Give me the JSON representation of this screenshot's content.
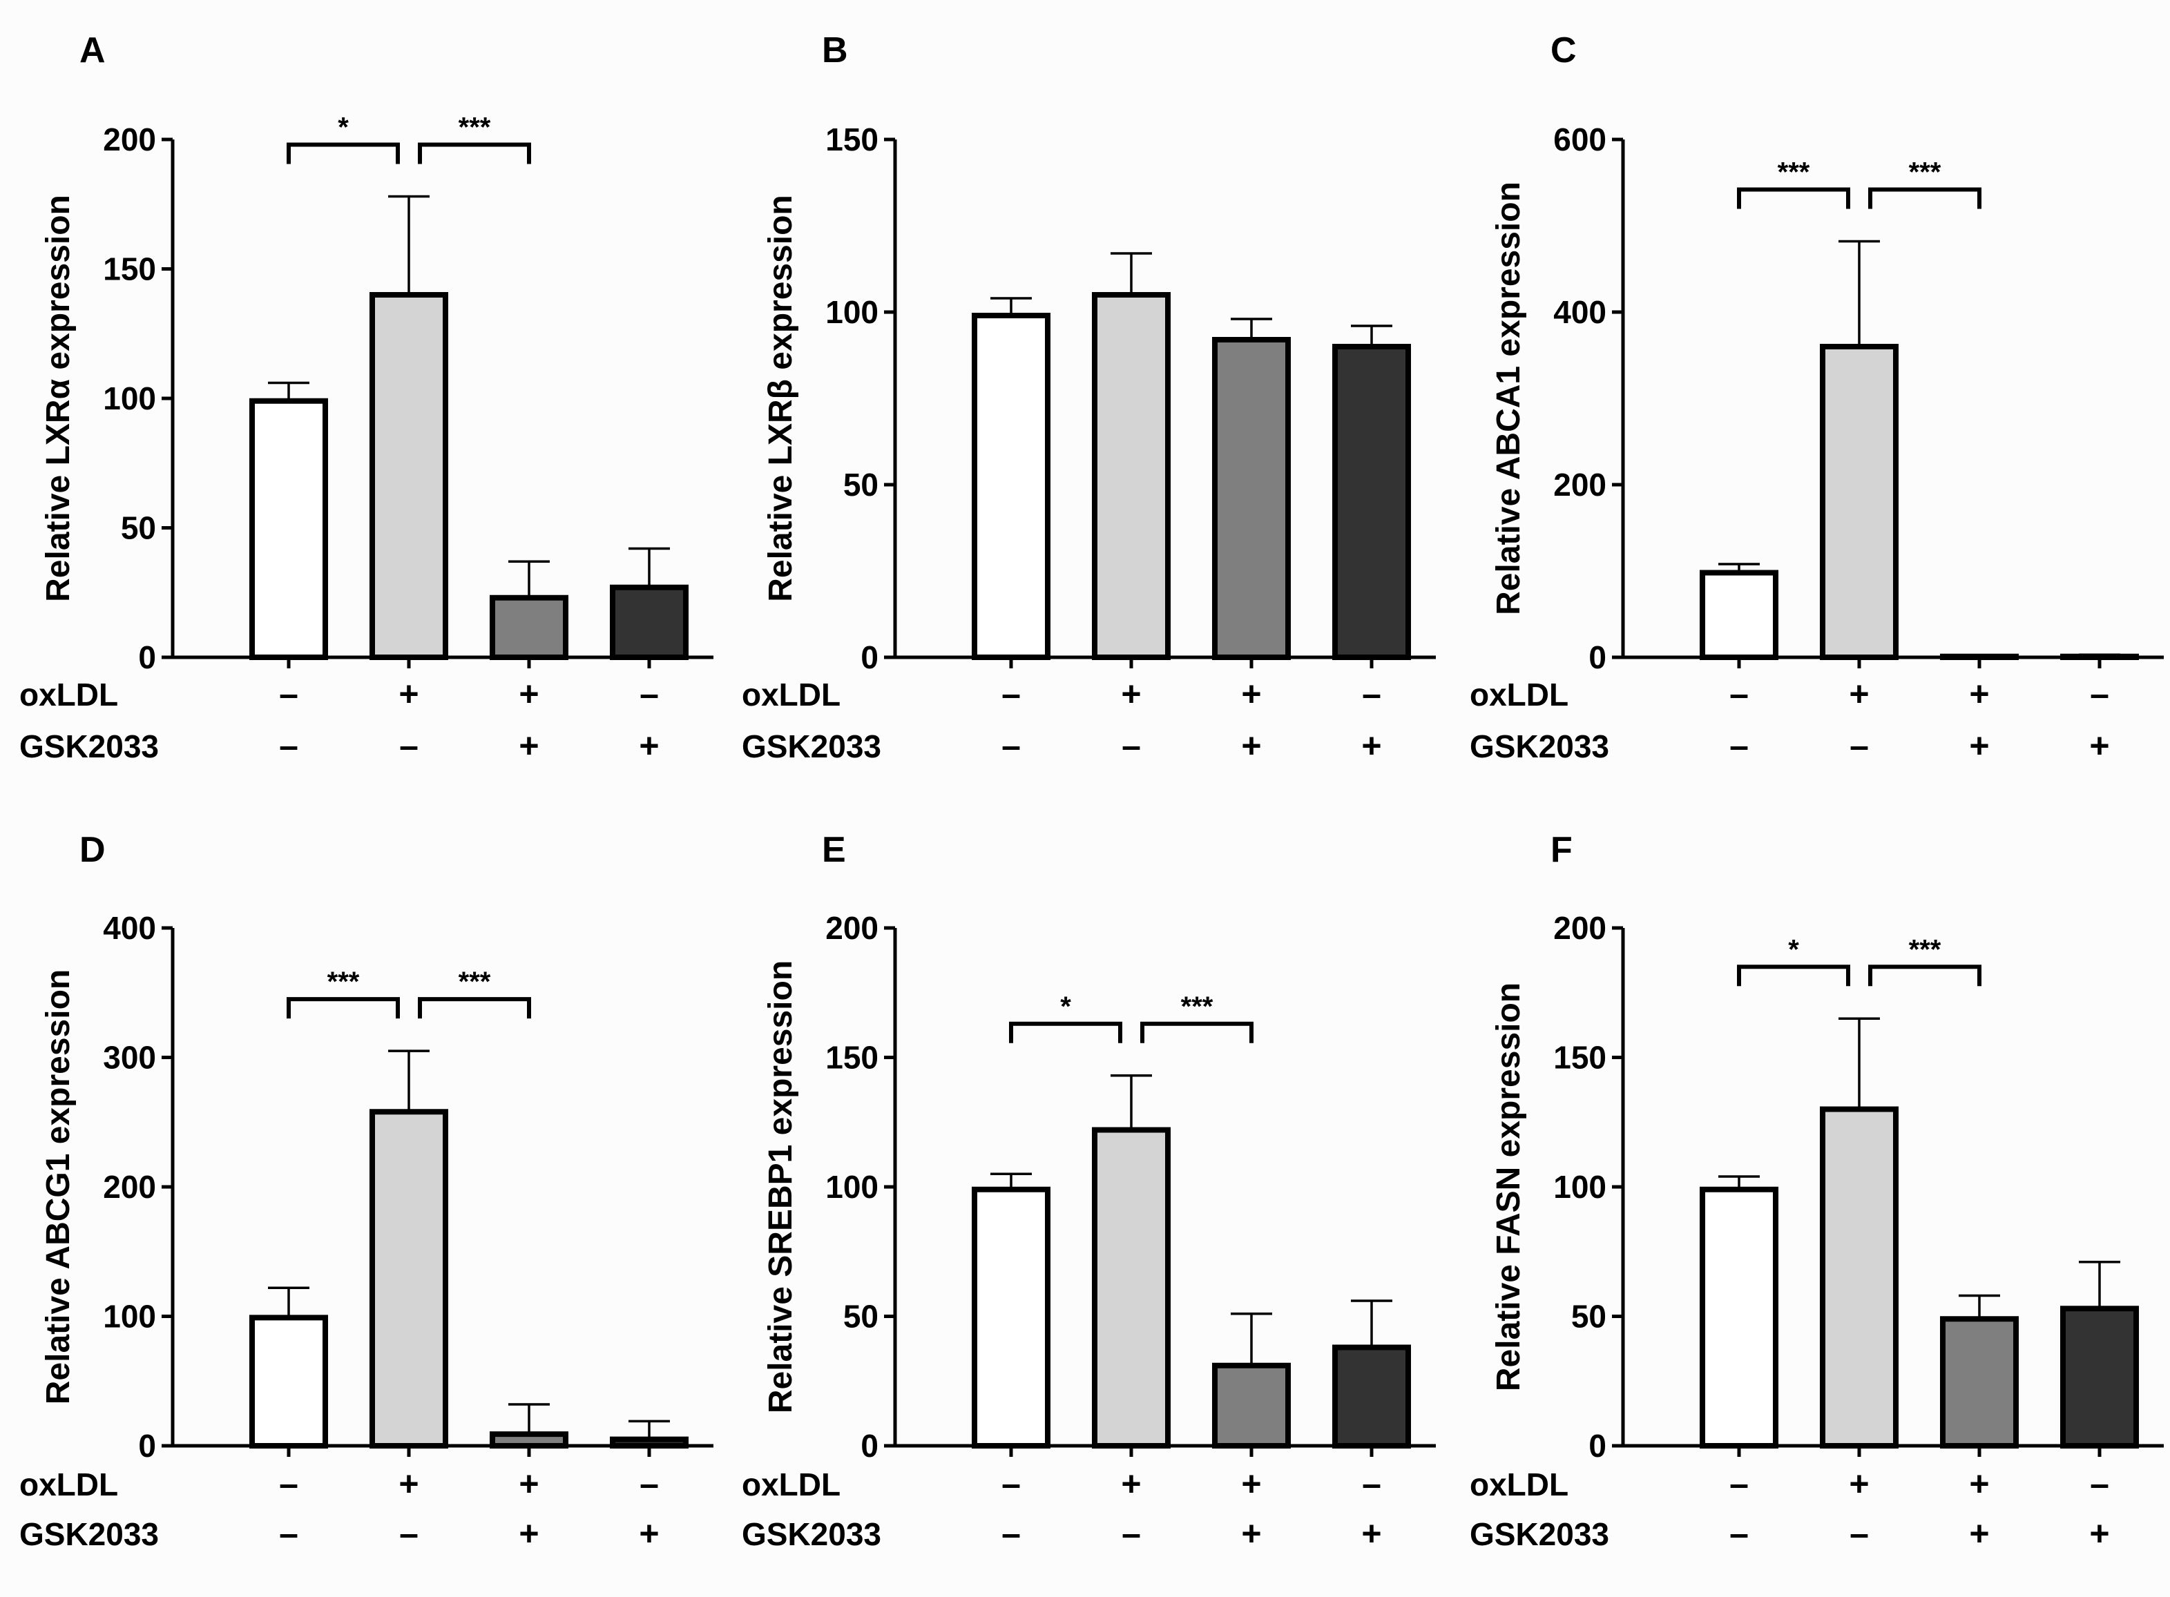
{
  "figure": {
    "row_labels": [
      "oxLDL",
      "GSK2033"
    ],
    "conditions": [
      {
        "oxLDL": "–",
        "GSK2033": "–"
      },
      {
        "oxLDL": "+",
        "GSK2033": "–"
      },
      {
        "oxLDL": "+",
        "GSK2033": "+"
      },
      {
        "oxLDL": "–",
        "GSK2033": "+"
      }
    ]
  },
  "colors": {
    "bars": [
      "#ffffff",
      "#d4d4d4",
      "#7f7f7f",
      "#333333"
    ],
    "axis": "#000000",
    "background": "#fcfcfc"
  },
  "chart_data": [
    {
      "panel": "A",
      "type": "bar",
      "ylabel": "Relative LXRα expression",
      "categories": [
        "– / –",
        "+ / –",
        "+ / +",
        "– / +"
      ],
      "values": [
        99,
        140,
        23,
        27
      ],
      "errors": [
        7,
        38,
        14,
        15
      ],
      "ylim": [
        0,
        200
      ],
      "yticks": [
        0,
        50,
        100,
        150,
        200
      ],
      "significance": [
        {
          "from": 0,
          "to": 1,
          "label": "*"
        },
        {
          "from": 1,
          "to": 2,
          "label": "***"
        }
      ]
    },
    {
      "panel": "B",
      "type": "bar",
      "ylabel": "Relative LXRβ expression",
      "categories": [
        "– / –",
        "+ / –",
        "+ / +",
        "– / +"
      ],
      "values": [
        99,
        105,
        92,
        90
      ],
      "errors": [
        5,
        12,
        6,
        6
      ],
      "ylim": [
        0,
        150
      ],
      "yticks": [
        0,
        50,
        100,
        150
      ],
      "significance": []
    },
    {
      "panel": "C",
      "type": "bar",
      "ylabel": "Relative ABCA1 expression",
      "categories": [
        "– / –",
        "+ / –",
        "+ / +",
        "– / +"
      ],
      "values": [
        98,
        360,
        1,
        1
      ],
      "errors": [
        10,
        122,
        1,
        2
      ],
      "ylim": [
        0,
        600
      ],
      "yticks": [
        0,
        200,
        400,
        600
      ],
      "significance": [
        {
          "from": 0,
          "to": 1,
          "label": "***"
        },
        {
          "from": 1,
          "to": 2,
          "label": "***"
        }
      ]
    },
    {
      "panel": "D",
      "type": "bar",
      "ylabel": "Relative ABCG1 expression",
      "categories": [
        "– / –",
        "+ / –",
        "+ / +",
        "– / +"
      ],
      "values": [
        99,
        258,
        9,
        5
      ],
      "errors": [
        23,
        47,
        23,
        14
      ],
      "ylim": [
        0,
        400
      ],
      "yticks": [
        0,
        100,
        200,
        300,
        400
      ],
      "significance": [
        {
          "from": 0,
          "to": 1,
          "label": "***"
        },
        {
          "from": 1,
          "to": 2,
          "label": "***"
        }
      ]
    },
    {
      "panel": "E",
      "type": "bar",
      "ylabel": "Relative SREBP1 expression",
      "categories": [
        "– / –",
        "+ / –",
        "+ / +",
        "– / +"
      ],
      "values": [
        99,
        122,
        31,
        38
      ],
      "errors": [
        6,
        21,
        20,
        18
      ],
      "ylim": [
        0,
        200
      ],
      "yticks": [
        0,
        50,
        100,
        150,
        200
      ],
      "significance": [
        {
          "from": 0,
          "to": 1,
          "label": "*"
        },
        {
          "from": 1,
          "to": 2,
          "label": "***"
        }
      ]
    },
    {
      "panel": "F",
      "type": "bar",
      "ylabel": "Relative FASN expression",
      "categories": [
        "– / –",
        "+ / –",
        "+ / +",
        "– / +"
      ],
      "values": [
        99,
        130,
        49,
        53
      ],
      "errors": [
        5,
        35,
        9,
        18
      ],
      "ylim": [
        0,
        200
      ],
      "yticks": [
        0,
        50,
        100,
        150,
        200
      ],
      "significance": [
        {
          "from": 0,
          "to": 1,
          "label": "*"
        },
        {
          "from": 1,
          "to": 2,
          "label": "***"
        }
      ]
    }
  ]
}
